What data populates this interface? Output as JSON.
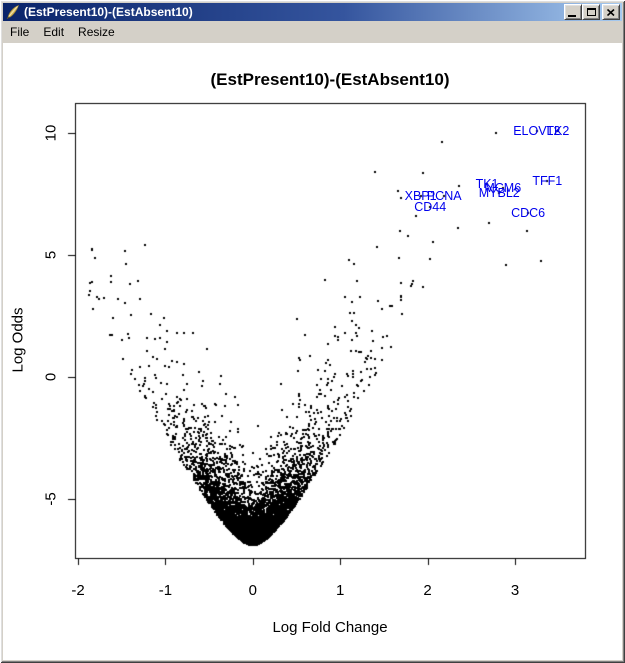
{
  "window": {
    "title": "(EstPresent10)-(EstAbsent10)",
    "menu": [
      "File",
      "Edit",
      "Resize"
    ],
    "icon": "tk-feather-icon",
    "buttons": [
      "minimize",
      "maximize",
      "close"
    ]
  },
  "chart_data": {
    "type": "scatter",
    "title": "(EstPresent10)-(EstAbsent10)",
    "xlabel": "Log Fold Change",
    "ylabel": "Log Odds",
    "x_ticks": [
      -2,
      -1,
      0,
      1,
      2,
      3
    ],
    "y_ticks": [
      -5,
      0,
      5,
      10
    ],
    "xlim": [
      -2.05,
      3.8
    ],
    "ylim": [
      -7.45,
      11.2
    ],
    "grid": false,
    "legend": false,
    "point_color": "#000000",
    "label_color": "#0000ee",
    "labeled_genes": [
      {
        "name": "ELOVL2",
        "x": 3.25,
        "y": 10.08
      },
      {
        "name": "TK2",
        "x": 3.49,
        "y": 10.08
      },
      {
        "name": "TFF1",
        "x": 3.37,
        "y": 8.03
      },
      {
        "name": "TK1",
        "x": 2.68,
        "y": 7.91
      },
      {
        "name": "MCM6",
        "x": 2.86,
        "y": 7.75
      },
      {
        "name": "MYBL2",
        "x": 2.82,
        "y": 7.54
      },
      {
        "name": "XBP1",
        "x": 1.92,
        "y": 7.42
      },
      {
        "name": "PCNA",
        "x": 2.19,
        "y": 7.42
      },
      {
        "name": "CD44",
        "x": 2.03,
        "y": 6.97
      },
      {
        "name": "CDC6",
        "x": 3.15,
        "y": 6.72
      }
    ],
    "extra_points": [
      {
        "x": -1.8,
        "y": 4.88
      },
      {
        "x": -1.62,
        "y": 3.9
      },
      {
        "x": 3.14,
        "y": 6.0
      },
      {
        "x": 2.7,
        "y": 6.3
      },
      {
        "x": 2.9,
        "y": 4.6
      },
      {
        "x": 3.3,
        "y": 4.75
      },
      {
        "x": 2.35,
        "y": 6.1
      }
    ],
    "point_cloud": {
      "description": "volcano-shaped cloud of ~6000 unlabeled probes",
      "seed": 7,
      "n": 6000,
      "envelope": {
        "y0": -6.9,
        "a": 14,
        "b": 2.1
      },
      "spread": {
        "base": 0.55,
        "slope": 0.9
      },
      "x_mixture": [
        {
          "w": 0.72,
          "sd": 0.27
        },
        {
          "w": 0.22,
          "sd": 0.55
        },
        {
          "w": 0.06,
          "sd": 0.95
        }
      ],
      "x_clip": [
        -1.9,
        3.3
      ],
      "y_max": 10.1
    }
  }
}
